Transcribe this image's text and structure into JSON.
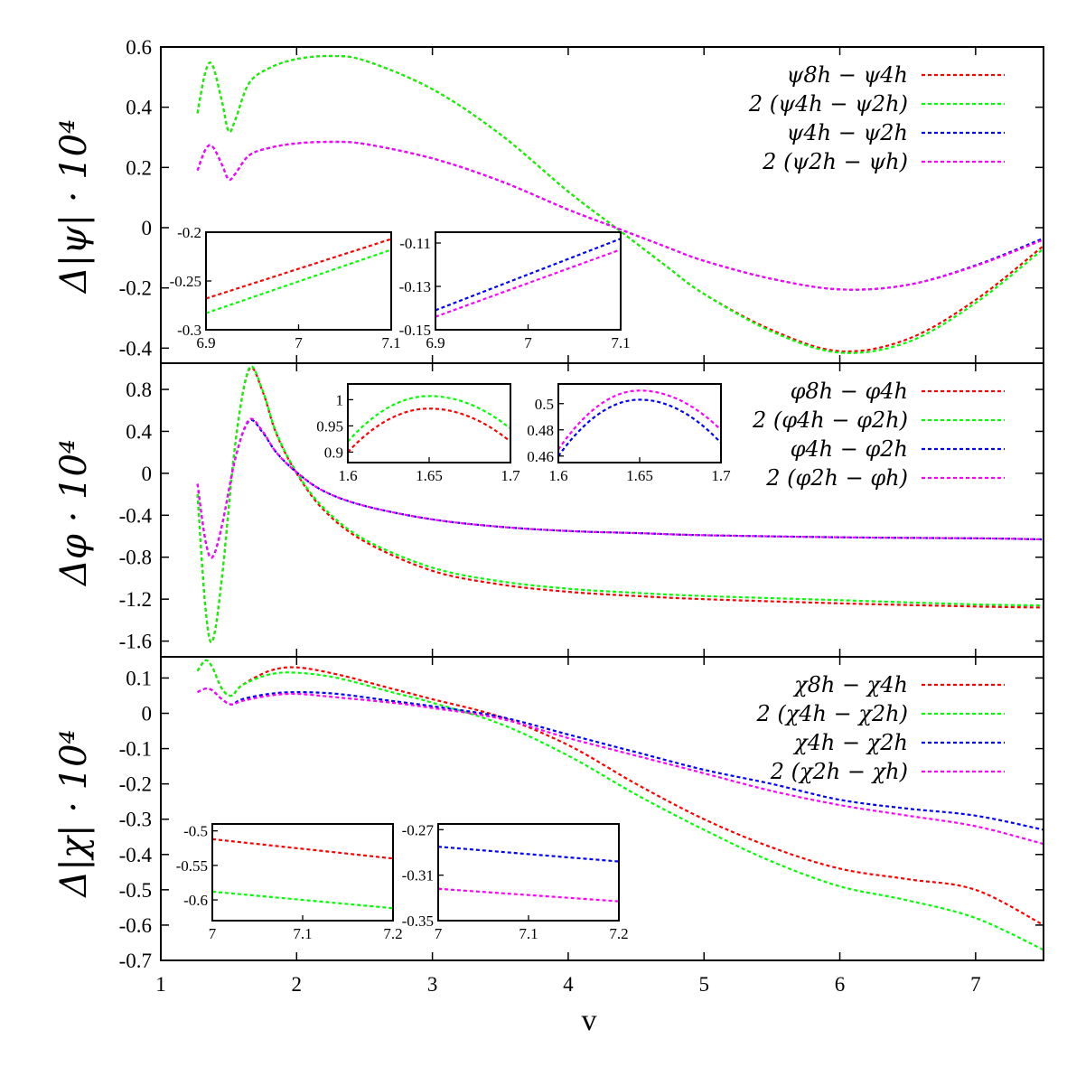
{
  "colors": {
    "red": "#ff0000",
    "green": "#00ff00",
    "blue": "#0000ff",
    "magenta": "#ff00ff"
  },
  "chart_data": [
    {
      "type": "line",
      "panel": "top",
      "ylabel": "Δ|ψ| · 10⁴",
      "xlabel": "",
      "xlim": [
        1,
        7.5
      ],
      "ylim": [
        -0.45,
        0.6
      ],
      "yticks": [
        -0.4,
        -0.2,
        0,
        0.2,
        0.4,
        0.6
      ],
      "ytick_labels": [
        "-0.4",
        "-0.2",
        "0",
        "0.2",
        "0.4",
        "0.6"
      ],
      "legend_position": "top-right",
      "x": [
        1.27,
        1.33,
        1.38,
        1.45,
        1.5,
        1.55,
        1.65,
        1.8,
        2.0,
        2.25,
        2.5,
        3.0,
        3.5,
        4.0,
        4.35,
        4.7,
        5.0,
        5.5,
        6.0,
        6.5,
        7.0,
        7.5
      ],
      "series": [
        {
          "name": "ψ8h − ψ4h",
          "color": "red",
          "values": [
            0.38,
            0.52,
            0.54,
            0.42,
            0.32,
            0.36,
            0.48,
            0.53,
            0.56,
            0.57,
            0.555,
            0.46,
            0.31,
            0.12,
            0.0,
            -0.12,
            -0.22,
            -0.34,
            -0.41,
            -0.37,
            -0.24,
            -0.06
          ]
        },
        {
          "name": "2 (ψ4h − ψ2h)",
          "color": "green",
          "values": [
            0.38,
            0.52,
            0.54,
            0.42,
            0.32,
            0.36,
            0.48,
            0.53,
            0.56,
            0.57,
            0.555,
            0.46,
            0.31,
            0.12,
            0.0,
            -0.12,
            -0.22,
            -0.345,
            -0.415,
            -0.38,
            -0.25,
            -0.07
          ]
        },
        {
          "name": "ψ4h − ψ2h",
          "color": "blue",
          "values": [
            0.19,
            0.26,
            0.27,
            0.21,
            0.16,
            0.18,
            0.24,
            0.265,
            0.28,
            0.285,
            0.278,
            0.23,
            0.155,
            0.06,
            0.0,
            -0.06,
            -0.11,
            -0.17,
            -0.205,
            -0.19,
            -0.125,
            -0.035
          ]
        },
        {
          "name": "2 (ψ2h − ψh)",
          "color": "magenta",
          "values": [
            0.19,
            0.26,
            0.27,
            0.21,
            0.16,
            0.18,
            0.24,
            0.265,
            0.28,
            0.285,
            0.278,
            0.23,
            0.155,
            0.06,
            0.0,
            -0.06,
            -0.11,
            -0.17,
            -0.205,
            -0.19,
            -0.127,
            -0.04
          ]
        }
      ],
      "insets": [
        {
          "xlim": [
            6.9,
            7.1
          ],
          "ylim": [
            -0.3,
            -0.2
          ],
          "xticks": [
            "6.9",
            "7",
            "7.1"
          ],
          "yticks": [
            "-0.3",
            "-0.25",
            "-0.2"
          ],
          "lines": [
            {
              "color": "red",
              "from": [
                6.9,
                -0.268
              ],
              "to": [
                7.1,
                -0.207
              ]
            },
            {
              "color": "green",
              "from": [
                6.9,
                -0.283
              ],
              "to": [
                7.1,
                -0.218
              ]
            }
          ]
        },
        {
          "xlim": [
            6.9,
            7.1
          ],
          "ylim": [
            -0.15,
            -0.105
          ],
          "xticks": [
            "6.9",
            "7",
            "7.1"
          ],
          "yticks": [
            "-0.15",
            "-0.13",
            "-0.11"
          ],
          "lines": [
            {
              "color": "blue",
              "from": [
                6.9,
                -0.141
              ],
              "to": [
                7.1,
                -0.108
              ]
            },
            {
              "color": "magenta",
              "from": [
                6.9,
                -0.144
              ],
              "to": [
                7.1,
                -0.113
              ]
            }
          ]
        }
      ]
    },
    {
      "type": "line",
      "panel": "middle",
      "ylabel": "Δφ · 10⁴",
      "xlabel": "",
      "xlim": [
        1,
        7.5
      ],
      "ylim": [
        -1.75,
        1.05
      ],
      "yticks": [
        -1.6,
        -1.2,
        -0.8,
        -0.4,
        0,
        0.4,
        0.8
      ],
      "ytick_labels": [
        "-1.6",
        "-1.2",
        "-0.8",
        "-0.4",
        "0",
        "0.4",
        "0.8"
      ],
      "legend_position": "top-right",
      "x": [
        1.27,
        1.33,
        1.38,
        1.45,
        1.55,
        1.65,
        1.75,
        1.85,
        2.0,
        2.2,
        2.5,
        3.0,
        3.5,
        4.0,
        4.5,
        5.0,
        6.0,
        7.0,
        7.5
      ],
      "series": [
        {
          "name": "φ8h − φ4h",
          "color": "red",
          "values": [
            -0.2,
            -1.3,
            -1.6,
            -1.0,
            0.3,
            0.99,
            0.78,
            0.38,
            0.0,
            -0.35,
            -0.65,
            -0.93,
            -1.06,
            -1.13,
            -1.17,
            -1.2,
            -1.24,
            -1.27,
            -1.28
          ]
        },
        {
          "name": "2 (φ4h − φ2h)",
          "color": "green",
          "values": [
            -0.2,
            -1.3,
            -1.6,
            -1.0,
            0.3,
            1.0,
            0.79,
            0.39,
            0.01,
            -0.33,
            -0.63,
            -0.9,
            -1.03,
            -1.1,
            -1.14,
            -1.17,
            -1.21,
            -1.25,
            -1.26
          ]
        },
        {
          "name": "φ4h − φ2h",
          "color": "blue",
          "values": [
            -0.1,
            -0.65,
            -0.8,
            -0.5,
            0.15,
            0.5,
            0.39,
            0.2,
            0.01,
            -0.17,
            -0.31,
            -0.44,
            -0.51,
            -0.55,
            -0.57,
            -0.59,
            -0.61,
            -0.62,
            -0.63
          ]
        },
        {
          "name": "2 (φ2h − φh)",
          "color": "magenta",
          "values": [
            -0.1,
            -0.65,
            -0.8,
            -0.5,
            0.15,
            0.51,
            0.4,
            0.2,
            0.01,
            -0.17,
            -0.31,
            -0.44,
            -0.51,
            -0.55,
            -0.57,
            -0.59,
            -0.61,
            -0.62,
            -0.63
          ]
        }
      ],
      "insets": [
        {
          "xlim": [
            1.6,
            1.7
          ],
          "ylim": [
            0.88,
            1.03
          ],
          "xticks": [
            "1.6",
            "1.65",
            "1.7"
          ],
          "yticks": [
            "0.9",
            "0.95",
            "1"
          ],
          "curves": [
            {
              "color": "red",
              "peak": [
                1.65,
                0.983
              ],
              "ends": [
                0.9,
                0.92
              ]
            },
            {
              "color": "green",
              "peak": [
                1.65,
                1.007
              ],
              "ends": [
                0.92,
                0.945
              ]
            }
          ]
        },
        {
          "xlim": [
            1.6,
            1.7
          ],
          "ylim": [
            0.455,
            0.515
          ],
          "xticks": [
            "1.6",
            "1.65",
            "1.7"
          ],
          "yticks": [
            "0.46",
            "0.48",
            "0.5"
          ],
          "curves": [
            {
              "color": "blue",
              "peak": [
                1.65,
                0.503
              ],
              "ends": [
                0.46,
                0.47
              ]
            },
            {
              "color": "magenta",
              "peak": [
                1.65,
                0.51
              ],
              "ends": [
                0.465,
                0.48
              ]
            }
          ]
        }
      ]
    },
    {
      "type": "line",
      "panel": "bottom",
      "ylabel": "Δ|χ| · 10⁴",
      "xlabel": "v",
      "xlim": [
        1,
        7.5
      ],
      "xticks": [
        1,
        2,
        3,
        4,
        5,
        6,
        7
      ],
      "xtick_labels": [
        "1",
        "2",
        "3",
        "4",
        "5",
        "6",
        "7"
      ],
      "ylim": [
        -0.7,
        0.16
      ],
      "yticks": [
        -0.7,
        -0.6,
        -0.5,
        -0.4,
        -0.3,
        -0.2,
        -0.1,
        0,
        0.1
      ],
      "ytick_labels": [
        "-0.7",
        "-0.6",
        "-0.5",
        "-0.4",
        "-0.3",
        "-0.2",
        "-0.1",
        "0",
        "0.1"
      ],
      "legend_position": "top-right",
      "x": [
        1.27,
        1.33,
        1.38,
        1.45,
        1.52,
        1.6,
        1.8,
        2.0,
        2.3,
        2.7,
        3.0,
        3.5,
        4.0,
        4.5,
        5.0,
        5.5,
        6.0,
        6.5,
        7.0,
        7.5
      ],
      "series": [
        {
          "name": "χ8h − χ4h",
          "color": "red",
          "values": [
            0.12,
            0.15,
            0.13,
            0.07,
            0.05,
            0.08,
            0.12,
            0.13,
            0.11,
            0.07,
            0.04,
            -0.01,
            -0.09,
            -0.2,
            -0.3,
            -0.38,
            -0.44,
            -0.47,
            -0.5,
            -0.6
          ]
        },
        {
          "name": "2 (χ4h − χ2h)",
          "color": "green",
          "values": [
            0.12,
            0.15,
            0.13,
            0.07,
            0.05,
            0.08,
            0.11,
            0.115,
            0.1,
            0.06,
            0.03,
            -0.03,
            -0.12,
            -0.23,
            -0.33,
            -0.42,
            -0.49,
            -0.53,
            -0.58,
            -0.67
          ]
        },
        {
          "name": "χ4h − χ2h",
          "color": "blue",
          "values": [
            0.06,
            0.07,
            0.065,
            0.04,
            0.025,
            0.04,
            0.055,
            0.06,
            0.055,
            0.035,
            0.02,
            -0.01,
            -0.06,
            -0.11,
            -0.16,
            -0.2,
            -0.245,
            -0.27,
            -0.29,
            -0.33
          ]
        },
        {
          "name": "2 (χ2h − χh)",
          "color": "magenta",
          "values": [
            0.06,
            0.07,
            0.065,
            0.04,
            0.025,
            0.035,
            0.05,
            0.055,
            0.045,
            0.03,
            0.015,
            -0.015,
            -0.07,
            -0.12,
            -0.17,
            -0.22,
            -0.26,
            -0.29,
            -0.32,
            -0.37
          ]
        }
      ],
      "insets": [
        {
          "xlim": [
            7,
            7.2
          ],
          "ylim": [
            -0.63,
            -0.49
          ],
          "xticks": [
            "7",
            "7.1",
            "7.2"
          ],
          "yticks": [
            "-0.6",
            "-0.55",
            "-0.5"
          ],
          "lines": [
            {
              "color": "red",
              "from": [
                7,
                -0.512
              ],
              "to": [
                7.2,
                -0.54
              ]
            },
            {
              "color": "green",
              "from": [
                7,
                -0.588
              ],
              "to": [
                7.2,
                -0.612
              ]
            }
          ]
        },
        {
          "xlim": [
            7,
            7.2
          ],
          "ylim": [
            -0.35,
            -0.265
          ],
          "xticks": [
            "7",
            "7.1",
            "7.2"
          ],
          "yticks": [
            "-0.35",
            "-0.31",
            "-0.27"
          ],
          "lines": [
            {
              "color": "blue",
              "from": [
                7,
                -0.285
              ],
              "to": [
                7.2,
                -0.298
              ]
            },
            {
              "color": "magenta",
              "from": [
                7,
                -0.322
              ],
              "to": [
                7.2,
                -0.333
              ]
            }
          ]
        }
      ]
    }
  ]
}
